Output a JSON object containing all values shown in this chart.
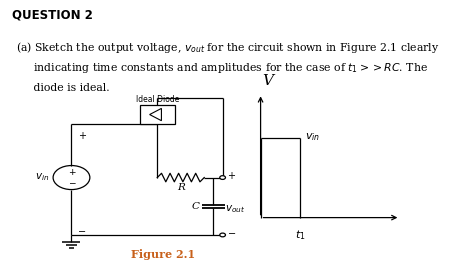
{
  "background_color": "#ffffff",
  "title_text": "QUESTION 2",
  "title_fontsize": 8.5,
  "title_fontweight": "bold",
  "body_line1": "(a) Sketch the output voltage, $v_{out}$ for the circuit shown in Figure 2.1 clearly",
  "body_line2": "     indicating time constants and amplitudes for the case of $t_1 >> RC$. The",
  "body_line3": "     diode is ideal.",
  "body_fontsize": 7.8,
  "figure_caption": "Figure 2.1",
  "caption_fontsize": 8,
  "caption_fontweight": "bold",
  "caption_color": "#c8601a",
  "line_color": "#000000",
  "text_color": "#000000",
  "circuit_scale": 1.0,
  "waveform_V_label_fontsize": 11,
  "waveform_vin_label_fontsize": 8,
  "waveform_t1_label_fontsize": 8
}
